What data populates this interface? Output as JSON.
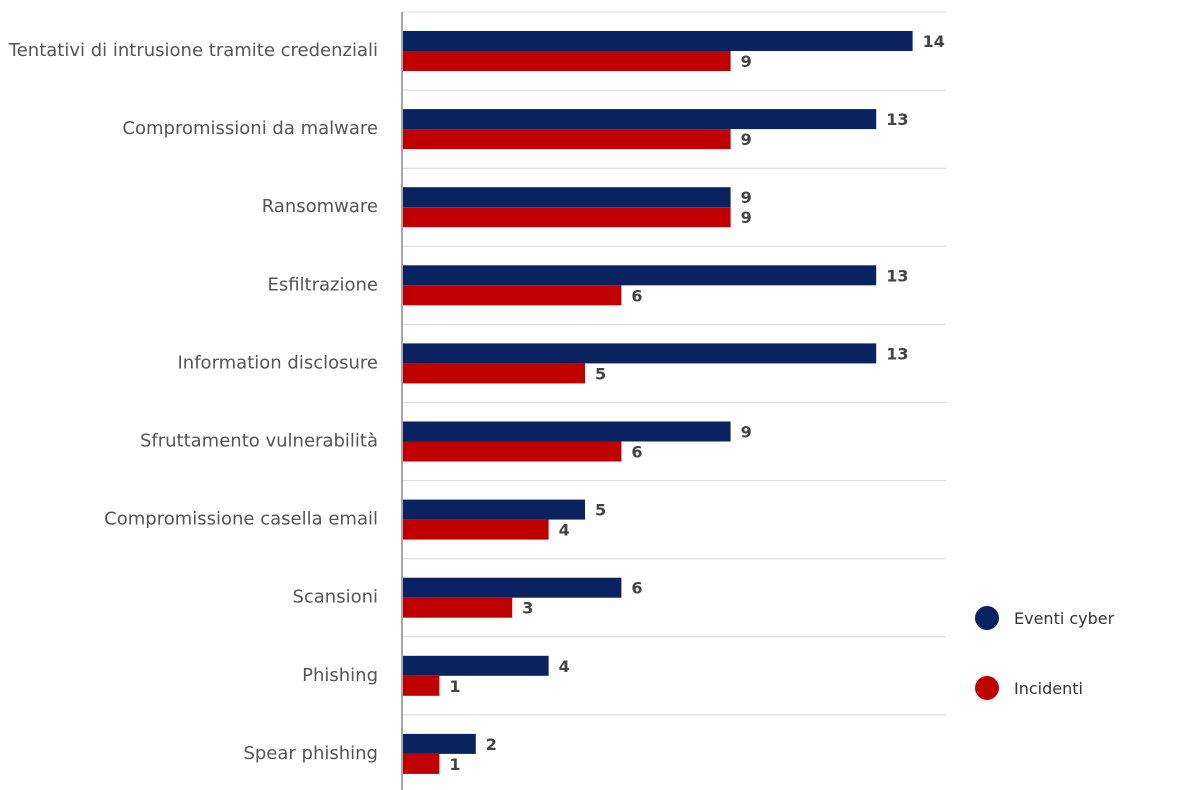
{
  "chart_data": {
    "type": "bar",
    "orientation": "horizontal",
    "categories": [
      "Tentativi di intrusione tramite credenziali",
      "Compromissioni da malware",
      "Ransomware",
      "Esfiltrazione",
      "Information disclosure",
      "Sfruttamento vulnerabilità",
      "Compromissione casella email",
      "Scansioni",
      "Phishing",
      "Spear phishing"
    ],
    "series": [
      {
        "name": "Eventi cyber",
        "color": "#0b2260",
        "values": [
          14,
          13,
          9,
          13,
          13,
          9,
          5,
          6,
          4,
          2
        ]
      },
      {
        "name": "Incidenti",
        "color": "#c00000",
        "values": [
          9,
          9,
          9,
          6,
          5,
          6,
          4,
          3,
          1,
          1
        ]
      }
    ],
    "xlim": [
      0,
      15
    ],
    "title": "",
    "xlabel": "",
    "ylabel": "",
    "grid": "horizontal separators between categories",
    "legend_position": "right"
  }
}
